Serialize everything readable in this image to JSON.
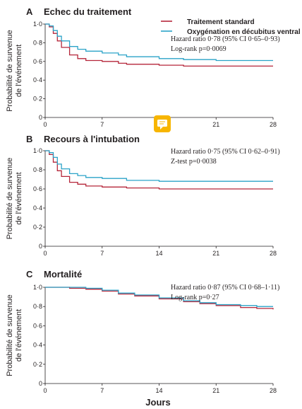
{
  "legend": {
    "items": [
      {
        "label": "Traitement standard",
        "color": "#b5263a"
      },
      {
        "label": "Oxygénation en décubitus ventral",
        "color": "#2ba3c8"
      }
    ]
  },
  "x_axis_label": "Jours",
  "chart_data": [
    {
      "type": "line",
      "letter": "A",
      "title": "Echec du traitement",
      "ylabel": [
        "Probabilité de survenue",
        "de l'événement"
      ],
      "xlim": [
        0,
        28
      ],
      "ylim": [
        0,
        1
      ],
      "xticks": [
        "0",
        "7",
        "14",
        "21",
        "28"
      ],
      "yticks": [
        "0",
        "0·2",
        "0·4",
        "0·6",
        "0·8",
        "1·0"
      ],
      "annotations": [
        "Hazard ratio 0·78 (95% CI 0·65–0·93)",
        "Log-rank p=0·0069"
      ],
      "series": [
        {
          "name": "Traitement standard",
          "color": "#b5263a",
          "x": [
            0,
            0.5,
            1,
            1.5,
            2,
            3,
            4,
            5,
            7,
            9,
            10,
            14,
            17,
            21,
            28
          ],
          "y": [
            1.0,
            0.97,
            0.9,
            0.82,
            0.75,
            0.67,
            0.63,
            0.61,
            0.6,
            0.58,
            0.57,
            0.56,
            0.55,
            0.55,
            0.55
          ]
        },
        {
          "name": "Oxygénation en décubitus ventral",
          "color": "#2ba3c8",
          "x": [
            0,
            0.5,
            1,
            1.5,
            2,
            3,
            4,
            5,
            7,
            9,
            10,
            14,
            17,
            21,
            28
          ],
          "y": [
            1.0,
            0.98,
            0.93,
            0.87,
            0.82,
            0.76,
            0.73,
            0.71,
            0.69,
            0.67,
            0.65,
            0.63,
            0.62,
            0.61,
            0.61
          ]
        }
      ]
    },
    {
      "type": "line",
      "letter": "B",
      "title": "Recours à l'intubation",
      "ylabel": [
        "Probabilité de survenue",
        "de l'événement"
      ],
      "xlim": [
        0,
        28
      ],
      "ylim": [
        0,
        1
      ],
      "xticks": [
        "0",
        "7",
        "14",
        "21",
        "28"
      ],
      "yticks": [
        "0",
        "0·2",
        "0·4",
        "0·6",
        "0·8",
        "1·0"
      ],
      "annotations": [
        "Hazard ratio 0·75 (95% CI 0·62–0·91)",
        "Z-test p=0·0038"
      ],
      "series": [
        {
          "name": "Traitement standard",
          "color": "#b5263a",
          "x": [
            0,
            0.5,
            1,
            1.5,
            2,
            3,
            4,
            5,
            7,
            10,
            14,
            21,
            28
          ],
          "y": [
            1.0,
            0.96,
            0.88,
            0.79,
            0.73,
            0.67,
            0.65,
            0.63,
            0.62,
            0.61,
            0.6,
            0.6,
            0.6
          ]
        },
        {
          "name": "Oxygénation en décubitus ventral",
          "color": "#2ba3c8",
          "x": [
            0,
            0.5,
            1,
            1.5,
            2,
            3,
            4,
            5,
            7,
            10,
            14,
            21,
            28
          ],
          "y": [
            1.0,
            0.98,
            0.93,
            0.86,
            0.81,
            0.76,
            0.74,
            0.72,
            0.71,
            0.69,
            0.68,
            0.68,
            0.68
          ]
        }
      ]
    },
    {
      "type": "line",
      "letter": "C",
      "title": "Mortalité",
      "ylabel": [
        "Probabilité de survenue",
        "de l'événement"
      ],
      "xlim": [
        0,
        28
      ],
      "ylim": [
        0,
        1
      ],
      "xticks": [
        "0",
        "7",
        "14",
        "21",
        "28"
      ],
      "yticks": [
        "0",
        "0·2",
        "0·4",
        "0·6",
        "0·8",
        "1·0"
      ],
      "annotations": [
        "Hazard ratio 0·87 (95% CI 0·68–1·11)",
        "Log-rank p=0·27"
      ],
      "series": [
        {
          "name": "Traitement standard",
          "color": "#b5263a",
          "x": [
            0,
            3,
            5,
            7,
            9,
            11,
            14,
            17,
            19,
            21,
            24,
            26,
            28
          ],
          "y": [
            1.0,
            0.99,
            0.98,
            0.96,
            0.93,
            0.91,
            0.88,
            0.85,
            0.83,
            0.81,
            0.79,
            0.78,
            0.77
          ]
        },
        {
          "name": "Oxygénation en décubitus ventral",
          "color": "#2ba3c8",
          "x": [
            0,
            3,
            5,
            7,
            9,
            11,
            14,
            17,
            19,
            21,
            24,
            26,
            28
          ],
          "y": [
            1.0,
            1.0,
            0.99,
            0.97,
            0.94,
            0.92,
            0.89,
            0.86,
            0.84,
            0.82,
            0.81,
            0.8,
            0.8
          ]
        }
      ]
    }
  ]
}
